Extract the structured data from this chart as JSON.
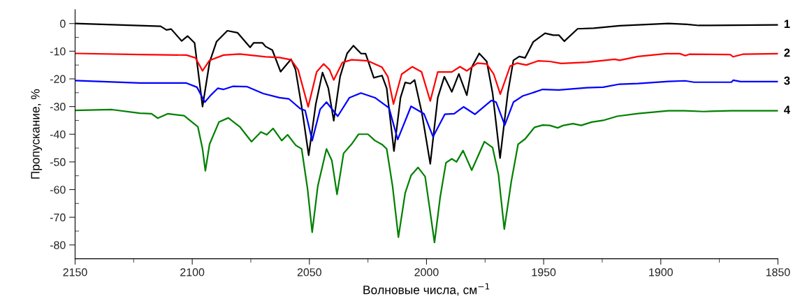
{
  "chart_data": {
    "type": "line",
    "xlabel": "Волновые числа, см$^{−1}$",
    "ylabel": "Пропускание, %",
    "xlim": [
      2150,
      1850
    ],
    "ylim": [
      -85,
      5
    ],
    "xticks": [
      2150,
      {
        "value": 2125,
        "label": null
      },
      2100,
      {
        "value": 2075,
        "label": null
      },
      2050,
      {
        "value": 2025,
        "label": null
      },
      2000,
      {
        "value": 1975,
        "label": null
      },
      1950,
      {
        "value": 1925,
        "label": null
      },
      1900,
      {
        "value": 1875,
        "label": null
      },
      1850
    ],
    "yticks": [
      0,
      {
        "value": -5,
        "label": null
      },
      -10,
      {
        "value": -15,
        "label": null
      },
      -20,
      {
        "value": -25,
        "label": null
      },
      -30,
      {
        "value": -35,
        "label": null
      },
      -40,
      {
        "value": -45,
        "label": null
      },
      -50,
      {
        "value": -55,
        "label": null
      },
      -60,
      {
        "value": -65,
        "label": null
      },
      -70,
      {
        "value": -75,
        "label": null
      },
      -80
    ],
    "grid": false,
    "legend": false,
    "marker": "none",
    "line_style": "solid",
    "series": [
      {
        "name": "1",
        "color": "#000000",
        "x": [
          2150,
          2113.5,
          2111,
          2109,
          2104.5,
          2102,
          2099,
          2095.6,
          2092.6,
          2089.6,
          2085,
          2080.7,
          2075.3,
          2073.8,
          2070,
          2068.7,
          2065.8,
          2062.3,
          2057.8,
          2055.9,
          2053.3,
          2050.3,
          2047.3,
          2044.4,
          2041.9,
          2039.6,
          2036.9,
          2033.9,
          2031.2,
          2028,
          2026,
          2022.5,
          2019,
          2017,
          2013.9,
          2011.1,
          2009.1,
          2006.9,
          2005.1,
          2002.1,
          1998.4,
          1995.2,
          1992.4,
          1989.2,
          1986.2,
          1982.8,
          1980.7,
          1977.5,
          1974.3,
          1971.8,
          1968.6,
          1965.3,
          1962.9,
          1960.4,
          1957.9,
          1954.4,
          1949.4,
          1945.9,
          1943.5,
          1941.2,
          1935.5,
          1928.6,
          1917.6,
          1896.7,
          1888.8,
          1883.8,
          1850
        ],
        "values": [
          0,
          -1,
          -2.3,
          -2,
          -6.3,
          -4.5,
          -7,
          -30,
          -14,
          -6.5,
          -2.6,
          -3.3,
          -8.6,
          -7,
          -7,
          -8.3,
          -9.6,
          -17.4,
          -12.9,
          -16.7,
          -30,
          -47.6,
          -29.3,
          -17.7,
          -23.4,
          -35.1,
          -19.2,
          -10.8,
          -8,
          -10.8,
          -10.9,
          -19.6,
          -18.8,
          -23.4,
          -46.1,
          -26.8,
          -21.3,
          -21.7,
          -20.4,
          -31.8,
          -50.7,
          -26.8,
          -19.2,
          -24.7,
          -18.2,
          -25.9,
          -15.8,
          -10.8,
          -13.7,
          -25.1,
          -48.6,
          -25.1,
          -13.3,
          -11.9,
          -12.4,
          -6.6,
          -3.5,
          -4.2,
          -4.2,
          -6.4,
          -1.9,
          -1.7,
          -0.8,
          0,
          -0.3,
          -0.7,
          -0.5
        ]
      },
      {
        "name": "2",
        "color": "#ff0000",
        "x": [
          2150,
          2122.4,
          2102.5,
          2098.6,
          2095.6,
          2092.6,
          2086.6,
          2079.7,
          2068.7,
          2062.8,
          2057.8,
          2054.8,
          2050.5,
          2046.9,
          2043.9,
          2041.4,
          2039.6,
          2035.9,
          2032,
          2025,
          2019,
          2016.5,
          2014.1,
          2010.6,
          2006.1,
          2002.1,
          1998.4,
          1995.2,
          1989.2,
          1985.7,
          1982.8,
          1978.3,
          1974.3,
          1971.3,
          1968.5,
          1964.3,
          1961.4,
          1957.4,
          1952.4,
          1947.4,
          1942.5,
          1931.5,
          1919.6,
          1917.6,
          1909.7,
          1897.8,
          1891.8,
          1889.6,
          1887.8,
          1870.4,
          1869.1,
          1865,
          1850
        ],
        "values": [
          -10.8,
          -11.2,
          -11.4,
          -12.4,
          -17.1,
          -13.3,
          -11.4,
          -11,
          -12,
          -12.3,
          -13.1,
          -16.7,
          -30.1,
          -17.5,
          -14.6,
          -16.7,
          -20.4,
          -14.1,
          -13.1,
          -13.5,
          -15.8,
          -19.2,
          -29.1,
          -18.3,
          -15.6,
          -17.5,
          -28,
          -17.5,
          -17.5,
          -15.6,
          -17.1,
          -14.3,
          -14.6,
          -18.3,
          -25.5,
          -15.4,
          -14.3,
          -15,
          -13.5,
          -13.7,
          -14.4,
          -14,
          -12.9,
          -13.3,
          -11.9,
          -10.9,
          -10.9,
          -11.6,
          -11.1,
          -11.2,
          -12,
          -11.1,
          -10.9
        ]
      },
      {
        "name": "3",
        "color": "#0000ff",
        "x": [
          2150,
          2122.4,
          2102.5,
          2098,
          2094.6,
          2092.1,
          2089.1,
          2086.6,
          2082.7,
          2076.7,
          2069.7,
          2062.8,
          2058.8,
          2053.8,
          2051.8,
          2048.8,
          2045.4,
          2042.7,
          2037.9,
          2032.9,
          2028,
          2022,
          2016,
          2012.3,
          2006.6,
          2001.1,
          1997.2,
          1992.2,
          1988.2,
          1984.2,
          1979.3,
          1972.3,
          1970.3,
          1966.6,
          1962.9,
          1959,
          1956.4,
          1950.4,
          1943.5,
          1931.5,
          1924.6,
          1917.6,
          1909.7,
          1896.7,
          1889.6,
          1885.8,
          1869.9,
          1869.1,
          1865.9,
          1850
        ],
        "values": [
          -20.6,
          -21.5,
          -21.5,
          -23,
          -28.4,
          -25.9,
          -23.4,
          -23.8,
          -22.7,
          -22.8,
          -25.3,
          -26.8,
          -27.2,
          -30.8,
          -31.4,
          -42.3,
          -31,
          -28.4,
          -33.5,
          -26.8,
          -25.1,
          -26.8,
          -30.5,
          -41.9,
          -29.9,
          -32.6,
          -40.9,
          -32.8,
          -32.6,
          -30.1,
          -32.8,
          -27.8,
          -28.4,
          -36.7,
          -28.4,
          -26.2,
          -25.5,
          -23.8,
          -24,
          -23.2,
          -23,
          -21.9,
          -21.7,
          -20.9,
          -20.7,
          -21.2,
          -21.2,
          -20.5,
          -21,
          -21
        ]
      },
      {
        "name": "4",
        "color": "#008000",
        "x": [
          2150,
          2134.3,
          2122.4,
          2117.4,
          2114.7,
          2110.5,
          2103.5,
          2097.6,
          2095.6,
          2094.4,
          2092.6,
          2088.6,
          2084.6,
          2079.7,
          2074.7,
          2070.7,
          2068.2,
          2065.5,
          2061.8,
          2059.3,
          2055.8,
          2053.3,
          2050.8,
          2048.8,
          2046.4,
          2042.7,
          2040.4,
          2038.2,
          2035.4,
          2032,
          2029,
          2025,
          2022,
          2019,
          2017,
          2014.5,
          2012,
          2009.1,
          2006.6,
          2003.6,
          2000.6,
          1998.6,
          1996.6,
          1994.2,
          1991.7,
          1989.2,
          1987.2,
          1984.4,
          1980.7,
          1975.3,
          1971.8,
          1969.3,
          1966.8,
          1963.8,
          1960.9,
          1957.9,
          1953.9,
          1950.4,
          1947.4,
          1944,
          1941.5,
          1937.5,
          1934,
          1929.5,
          1924.6,
          1918.6,
          1909.7,
          1896.7,
          1889.8,
          1881.8,
          1869.9,
          1850
        ],
        "values": [
          -31.4,
          -31.1,
          -32.4,
          -32.6,
          -34.2,
          -32.6,
          -33.3,
          -37.3,
          -45.3,
          -53.2,
          -43.6,
          -35.6,
          -34.1,
          -37.3,
          -42.7,
          -39.2,
          -40.2,
          -37.9,
          -42.3,
          -40.2,
          -44,
          -45.3,
          -59.6,
          -75.4,
          -58.7,
          -45.3,
          -49.5,
          -61.7,
          -46.9,
          -43.6,
          -40,
          -40,
          -42.3,
          -43.7,
          -45.3,
          -58.7,
          -77.2,
          -61.2,
          -54.9,
          -52,
          -55.3,
          -67.1,
          -79.1,
          -62.9,
          -50.3,
          -48.9,
          -50,
          -45.9,
          -53,
          -42.7,
          -44.8,
          -54.5,
          -74.3,
          -57,
          -43.6,
          -41.7,
          -37.5,
          -36.7,
          -36.8,
          -37.7,
          -36.8,
          -36.2,
          -36.8,
          -35.6,
          -35,
          -33.5,
          -32.5,
          -31.5,
          -31.5,
          -31.8,
          -31.5,
          -31.5
        ]
      }
    ]
  }
}
